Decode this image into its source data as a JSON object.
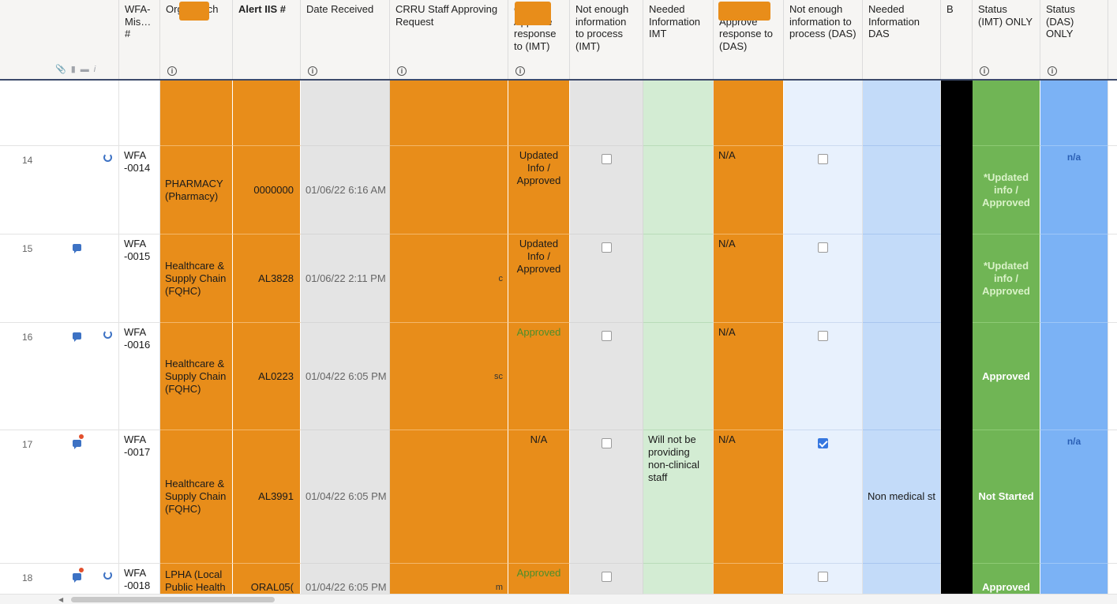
{
  "header": {
    "icons": [
      "paperclip-icon",
      "comment-icon",
      "folder-icon",
      "info-icon"
    ],
    "columns": [
      {
        "key": "wfa",
        "label": "WFA-Mis…#"
      },
      {
        "key": "org",
        "label": "Org Branch"
      },
      {
        "key": "alert",
        "label": "Alert IIS #"
      },
      {
        "key": "date",
        "label": "Date Received"
      },
      {
        "key": "crru",
        "label": "CRRU Staff Approving Request"
      },
      {
        "key": "imt_approve",
        "label": "OPS Approve response to (IMT)"
      },
      {
        "key": "ne_imt",
        "label": "Not enough information to process (IMT)"
      },
      {
        "key": "need_imt",
        "label": "Needed Information IMT"
      },
      {
        "key": "das_approve",
        "label": "OPS Approve response to (DAS)"
      },
      {
        "key": "ne_das",
        "label": "Not enough information to process (DAS)"
      },
      {
        "key": "need_das",
        "label": "Needed Information DAS"
      },
      {
        "key": "b",
        "label": "B"
      },
      {
        "key": "status_imt",
        "label": "Status (IMT) ONLY"
      },
      {
        "key": "status_das",
        "label": "Status (DAS) ONLY"
      }
    ]
  },
  "rows": [
    {
      "num": "14",
      "wfa": "WFA -0014",
      "org": "PHARMACY (Pharmacy)",
      "alert": "0000000",
      "date": "01/06/22 6:16 AM",
      "crru": "",
      "imt_approve": "Updated Info / Approved",
      "ne_imt": false,
      "need_imt": "",
      "das_approve": "N/A",
      "ne_das": false,
      "need_das": "",
      "status_imt": "*Updated info / Approved",
      "status_das": "n/a",
      "icons": [
        "refresh"
      ]
    },
    {
      "num": "15",
      "wfa": "WFA -0015",
      "org": "Healthcare & Supply Chain (FQHC)",
      "alert": "AL3828",
      "date": "01/06/22 2:11 PM",
      "crru": "c",
      "imt_approve": "Updated Info / Approved",
      "ne_imt": false,
      "need_imt": "",
      "das_approve": "N/A",
      "ne_das": false,
      "need_das": "",
      "status_imt": "*Updated info / Approved",
      "status_das": "",
      "icons": [
        "chat"
      ]
    },
    {
      "num": "16",
      "wfa": "WFA -0016",
      "org": "Healthcare & Supply Chain (FQHC)",
      "alert": "AL0223",
      "date": "01/04/22 6:05 PM",
      "crru": "sc",
      "imt_approve": "Approved",
      "ne_imt": false,
      "need_imt": "",
      "das_approve": "N/A",
      "ne_das": false,
      "need_das": "",
      "status_imt": "Approved",
      "status_das": "",
      "icons": [
        "chat",
        "refresh"
      ]
    },
    {
      "num": "17",
      "wfa": "WFA -0017",
      "org": "Healthcare & Supply Chain (FQHC)",
      "alert": "AL3991",
      "date": "01/04/22 6:05 PM",
      "crru": "",
      "imt_approve": "N/A",
      "ne_imt": false,
      "need_imt": "Will not be providing non-clinical staff",
      "das_approve": "N/A",
      "ne_das": true,
      "need_das": "Non medical st",
      "status_imt": "Not Started",
      "status_das": "n/a",
      "icons": [
        "chat-new"
      ]
    },
    {
      "num": "18",
      "wfa": "WFA -0018",
      "org": "LPHA (Local Public Health Authority)",
      "alert": "ORAL05(",
      "date": "01/04/22 6:05 PM",
      "crru": "m",
      "imt_approve": "Approved",
      "ne_imt": false,
      "need_imt": "",
      "das_approve": "",
      "ne_das": false,
      "need_das": "",
      "status_imt": "Approved",
      "status_das": "",
      "icons": [
        "chat-new",
        "refresh"
      ]
    }
  ],
  "colors": {
    "orange": "#e88d1a",
    "grey": "#e4e4e4",
    "green": "#70b555",
    "blue": "#7bb2f5",
    "header_line": "#3c4a6b"
  }
}
